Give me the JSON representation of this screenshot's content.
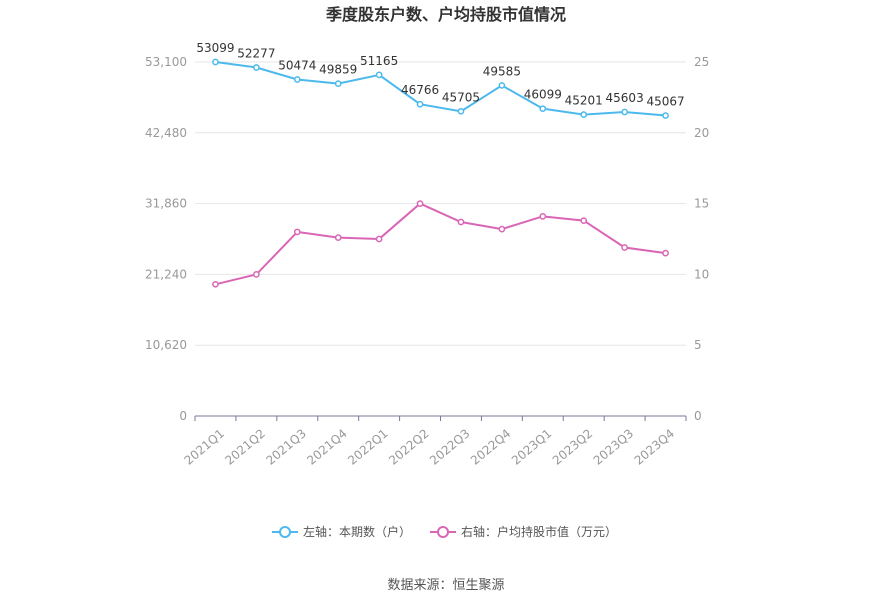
{
  "chart_data": {
    "type": "line",
    "title": "季度股东户数、户均持股市值情况",
    "categories": [
      "2021Q1",
      "2021Q2",
      "2021Q3",
      "2021Q4",
      "2022Q1",
      "2022Q2",
      "2022Q3",
      "2022Q4",
      "2023Q1",
      "2023Q2",
      "2023Q3",
      "2023Q4"
    ],
    "left_axis": {
      "ticks": [
        "0",
        "10,620",
        "21,240",
        "31,860",
        "42,480",
        "53,100"
      ],
      "ylim": [
        0,
        53100
      ]
    },
    "right_axis": {
      "ticks": [
        "0",
        "5",
        "10",
        "15",
        "20",
        "25"
      ],
      "ylim": [
        0,
        25
      ]
    },
    "series": [
      {
        "name": "左轴：本期数（户）",
        "axis": "left",
        "color": "#4cb9ed",
        "values": [
          53099,
          52277,
          50474,
          49859,
          51165,
          46766,
          45705,
          49585,
          46099,
          45201,
          45603,
          45067
        ],
        "labels": [
          "53099",
          "52277",
          "50474",
          "49859",
          "51165",
          "46766",
          "45705",
          "49585",
          "46099",
          "45201",
          "45603",
          "45067"
        ]
      },
      {
        "name": "右轴：户均持股市值（万元）",
        "axis": "right",
        "color": "#d966b5",
        "values": [
          9.3,
          10.0,
          13.0,
          12.6,
          12.5,
          15.0,
          13.7,
          13.2,
          14.1,
          13.8,
          11.9,
          11.5
        ]
      }
    ],
    "grid": true,
    "legend_position": "bottom"
  },
  "source": "数据来源：恒生聚源"
}
